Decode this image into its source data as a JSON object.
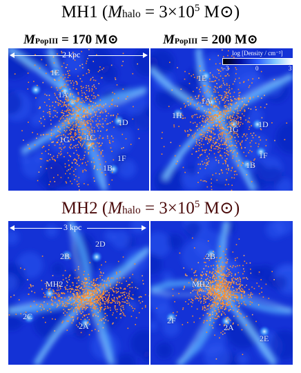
{
  "mh1": {
    "title_pre": "MH1 (",
    "title_m": "M",
    "title_sub": "halo",
    "title_mid": " = 3×10",
    "title_exp": "5",
    "title_unit": " M⊙)",
    "col_left": {
      "m": "M",
      "sub": "PopIII",
      "value": " = 170 M⊙"
    },
    "col_right": {
      "m": "M",
      "sub": "PopIII",
      "value": " = 200 M⊙"
    },
    "scale_text": "2 kpc",
    "labels_left": [
      "1E",
      "1A",
      "1D",
      "1G",
      "1C",
      "1F",
      "1B"
    ],
    "labels_right": [
      "1E",
      "1A",
      "1H",
      "1C",
      "1D",
      "1F",
      "1B"
    ]
  },
  "mh2": {
    "title_pre": "MH2 (",
    "title_m": "M",
    "title_sub": "halo",
    "title_mid": " = 3×10",
    "title_exp": "5",
    "title_unit": " M⊙)",
    "scale_text": "3 kpc",
    "labels_left": [
      "2D",
      "2B",
      "MH2",
      "2C",
      "2A"
    ],
    "labels_right": [
      "2B",
      "MH2",
      "2F",
      "2A",
      "2E"
    ]
  },
  "colorbar": {
    "label": "log [Density / cm⁻³]",
    "ticks": [
      "−3",
      "0",
      "3"
    ],
    "colors": [
      "#000000",
      "#0010a0",
      "#2a5cff",
      "#80c8ff",
      "#ffffff"
    ]
  },
  "colors": {
    "background": "#1830d8",
    "filament": "#9fe0ff",
    "stars": "#ff9a3c"
  }
}
